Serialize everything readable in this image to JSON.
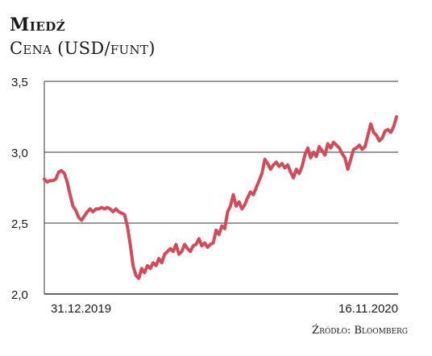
{
  "header": {
    "title": "Miedź",
    "subtitle": "Cena (USD/funt)"
  },
  "source": "Źródło: Bloomberg",
  "colors": {
    "line": "#d14b5a",
    "grid": "#333333",
    "text": "#1a1a1a"
  },
  "chart_data": {
    "type": "line",
    "title": "Miedź",
    "subtitle": "Cena (USD/funt)",
    "ylabel": "",
    "xlabel": "",
    "ylim": [
      2.0,
      3.5
    ],
    "yticks": [
      "3,5",
      "3,0",
      "2,5",
      "2,0"
    ],
    "ytick_values": [
      3.5,
      3.0,
      2.5,
      2.0
    ],
    "xtick_labels": [
      "31.12.2019",
      "16.11.2020"
    ],
    "grid": true,
    "series": [
      {
        "x_start": "2019-12-31",
        "x_end": "2020-11-16",
        "values": [
          2.81,
          2.79,
          2.8,
          2.8,
          2.81,
          2.86,
          2.87,
          2.85,
          2.79,
          2.7,
          2.62,
          2.59,
          2.54,
          2.52,
          2.55,
          2.58,
          2.6,
          2.58,
          2.6,
          2.6,
          2.61,
          2.6,
          2.61,
          2.6,
          2.58,
          2.6,
          2.58,
          2.57,
          2.56,
          2.48,
          2.35,
          2.2,
          2.13,
          2.11,
          2.18,
          2.15,
          2.2,
          2.18,
          2.22,
          2.2,
          2.25,
          2.22,
          2.28,
          2.3,
          2.32,
          2.3,
          2.35,
          2.28,
          2.3,
          2.35,
          2.32,
          2.3,
          2.34,
          2.35,
          2.39,
          2.34,
          2.36,
          2.33,
          2.35,
          2.36,
          2.45,
          2.42,
          2.48,
          2.46,
          2.58,
          2.62,
          2.7,
          2.62,
          2.65,
          2.6,
          2.63,
          2.68,
          2.72,
          2.7,
          2.75,
          2.8,
          2.85,
          2.95,
          2.92,
          2.88,
          2.91,
          2.93,
          2.9,
          2.92,
          2.89,
          2.91,
          2.86,
          2.82,
          2.88,
          2.85,
          2.9,
          2.98,
          3.03,
          2.96,
          3.0,
          2.97,
          3.04,
          3.01,
          2.98,
          3.06,
          3.03,
          3.07,
          3.05,
          3.03,
          2.99,
          2.96,
          2.88,
          2.95,
          3.02,
          3.03,
          3.05,
          3.02,
          3.04,
          3.12,
          3.2,
          3.14,
          3.12,
          3.08,
          3.1,
          3.15,
          3.16,
          3.14,
          3.18,
          3.25
        ]
      }
    ]
  }
}
